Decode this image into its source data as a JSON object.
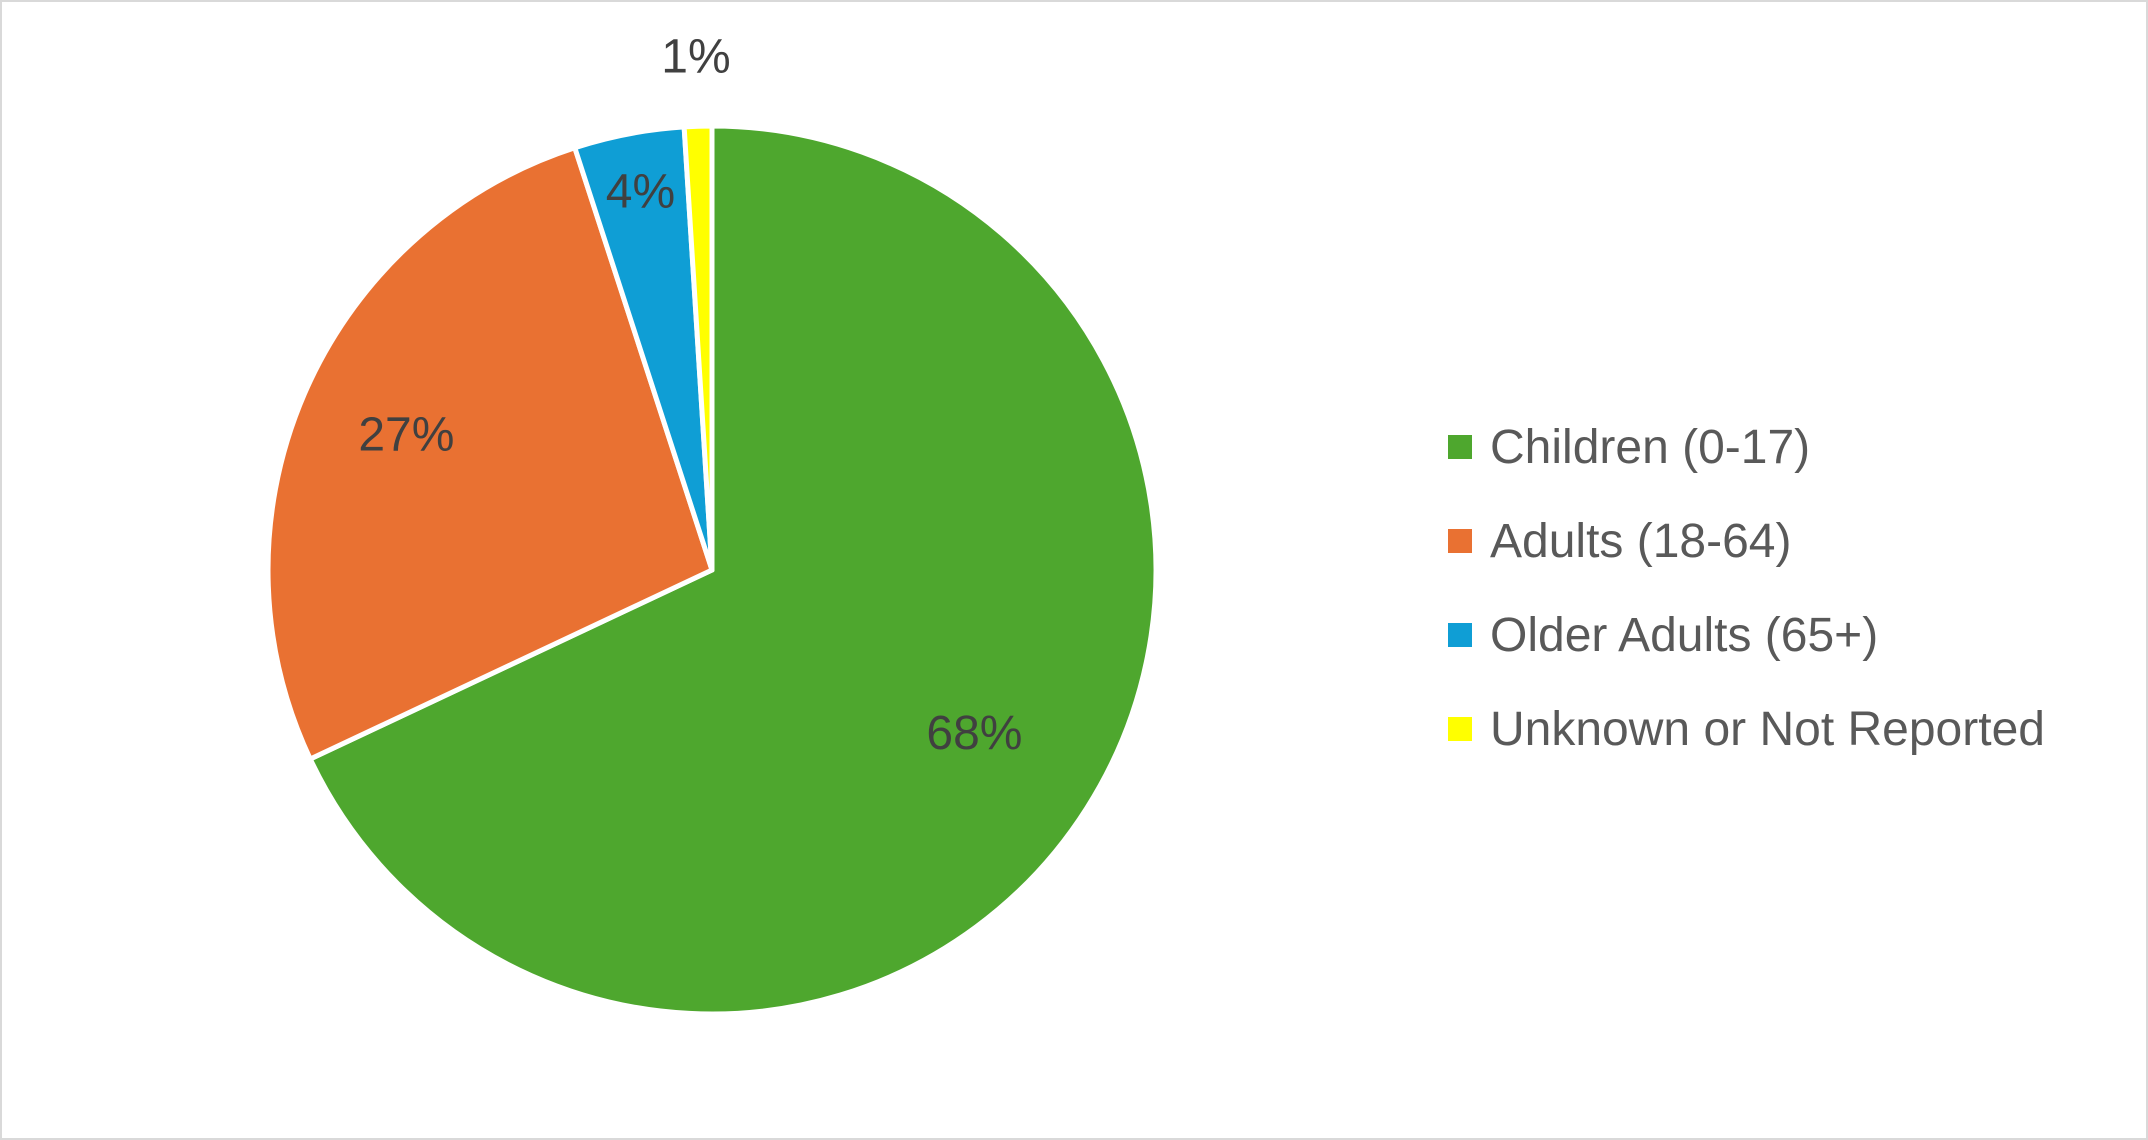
{
  "chart_data": {
    "type": "pie",
    "title": "",
    "legend_position": "right",
    "slices": [
      {
        "label": "Children (0-17)",
        "value": 68,
        "display": "68%",
        "color": "#4EA72E"
      },
      {
        "label": "Adults (18-64)",
        "value": 27,
        "display": "27%",
        "color": "#E97132"
      },
      {
        "label": "Older Adults (65+)",
        "value": 4,
        "display": "4%",
        "color": "#0F9ED5"
      },
      {
        "label": "Unknown or Not Reported",
        "value": 1,
        "display": "1%",
        "color": "#FFFF00"
      }
    ]
  }
}
